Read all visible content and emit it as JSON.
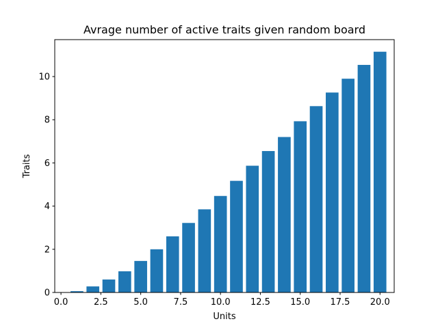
{
  "chart_data": {
    "type": "bar",
    "title": "Avrage number of active traits given random board",
    "xlabel": "Units",
    "ylabel": "Traits",
    "x": [
      1,
      2,
      3,
      4,
      5,
      6,
      7,
      8,
      9,
      10,
      11,
      12,
      13,
      14,
      15,
      16,
      17,
      18,
      19,
      20
    ],
    "values": [
      0.06,
      0.28,
      0.6,
      0.98,
      1.46,
      2.0,
      2.6,
      3.22,
      3.85,
      4.47,
      5.17,
      5.87,
      6.55,
      7.2,
      7.93,
      8.63,
      9.26,
      9.9,
      10.54,
      11.15
    ],
    "xlim": [
      -0.39,
      20.89
    ],
    "ylim": [
      0,
      11.71
    ],
    "xticks": [
      0.0,
      2.5,
      5.0,
      7.5,
      10.0,
      12.5,
      15.0,
      17.5,
      20.0
    ],
    "xtick_labels": [
      "0.0",
      "2.5",
      "5.0",
      "7.5",
      "10.0",
      "12.5",
      "15.0",
      "17.5",
      "20.0"
    ],
    "yticks": [
      0,
      2,
      4,
      6,
      8,
      10
    ],
    "ytick_labels": [
      "0",
      "2",
      "4",
      "6",
      "8",
      "10"
    ],
    "bar_width": 0.8,
    "grid": false,
    "legend": "none",
    "bar_color": "#1f77b4"
  }
}
